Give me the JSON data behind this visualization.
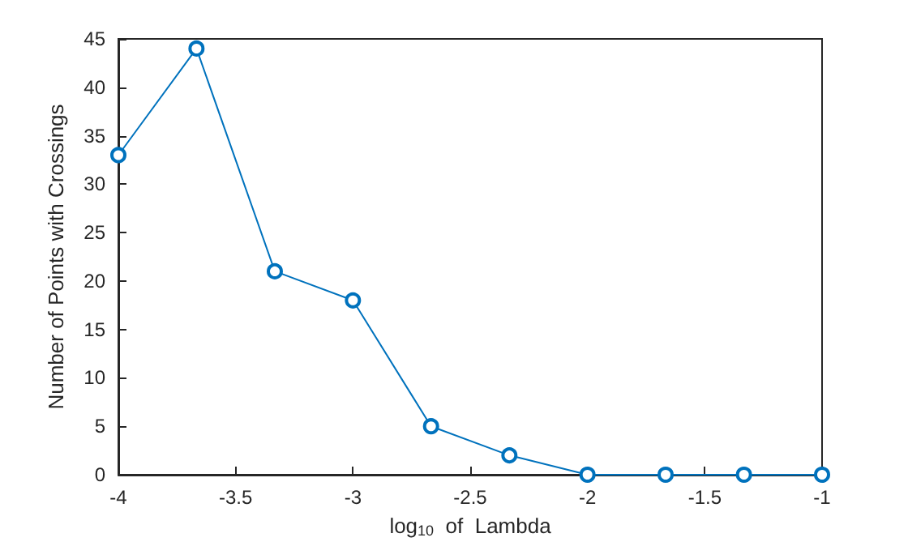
{
  "chart_data": {
    "type": "line",
    "xlabel": "log$_{10}$  of  Lambda",
    "ylabel": "Number of Points with Crossings",
    "x": [
      -4,
      -3.667,
      -3.333,
      -3,
      -2.667,
      -2.333,
      -2,
      -1.667,
      -1.333,
      -1
    ],
    "series": [
      {
        "color": "#0072bd",
        "values": [
          33,
          44,
          21,
          18,
          5,
          2,
          0,
          0,
          0,
          0
        ]
      }
    ],
    "xlim": [
      -4,
      -1
    ],
    "xticks": [
      -4,
      -3.5,
      -3,
      -2.5,
      -2,
      -1.5,
      -1
    ],
    "ylim": [
      0,
      45
    ],
    "yticks": [
      0,
      5,
      10,
      15,
      20,
      25,
      30,
      35,
      40,
      45
    ],
    "marker": "circle",
    "line_style": "solid",
    "grid": false
  }
}
